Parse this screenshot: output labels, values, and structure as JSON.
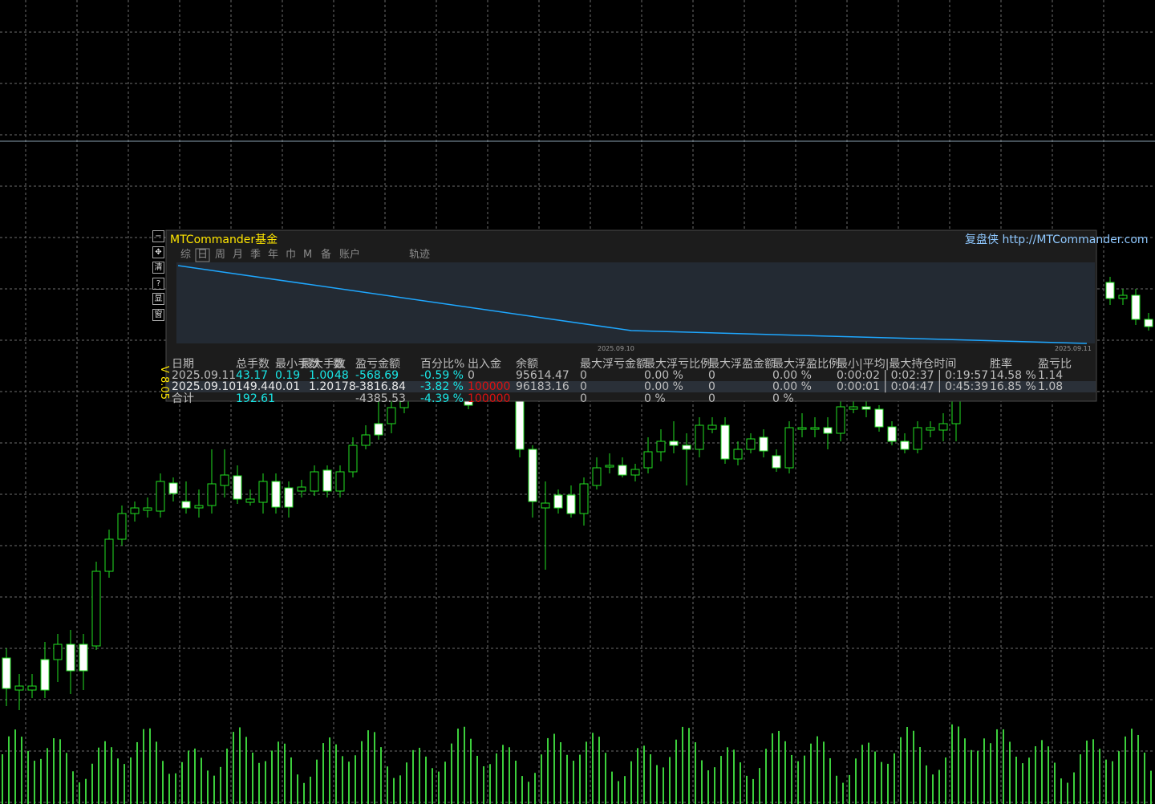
{
  "window": {
    "title": "MTCommander基金",
    "link": "复盘侠 http://MTCommander.com",
    "version": "V 8.05",
    "side_buttons": [
      "−",
      "✥",
      "清",
      "?",
      "显",
      "窗"
    ]
  },
  "tabs": [
    "综",
    "日",
    "周",
    "月",
    "季",
    "年",
    "巾",
    "M",
    "备",
    "账户",
    "轨迹"
  ],
  "equity_chart": {
    "x_labels": [
      "2025.09.10",
      "2025.09.11"
    ]
  },
  "table": {
    "headers": [
      "日期",
      "总手数",
      "最小手数",
      "最大手数",
      "数",
      "盈亏金额",
      "百分比%",
      "出入金",
      "余额",
      "最大浮亏金额",
      "最大浮亏比例",
      "最大浮盈金额",
      "最大浮盈比例",
      "最小|平均|最大持仓时间",
      "胜率",
      "盈亏比"
    ],
    "rows": [
      [
        "2025.09.11",
        "43.17",
        "0.19",
        "1.00",
        "48",
        "-568.69",
        "-0.59 %",
        "0",
        "95614.47",
        "0",
        "0.00 %",
        "0",
        "0.00 %",
        "0:00:02 | 0:02:37 | 0:19:57",
        "14.58 %",
        "1.14"
      ],
      [
        "2025.09.10",
        "149.44",
        "0.01",
        "1.20",
        "178",
        "-3816.84",
        "-3.82 %",
        "100000",
        "96183.16",
        "0",
        "0.00 %",
        "0",
        "0.00 %",
        "0:00:01 | 0:04:47 | 0:45:39",
        "16.85 %",
        "1.08"
      ],
      [
        "合计",
        "192.61",
        null,
        null,
        null,
        "-4385.53",
        "-4.39 %",
        "100000",
        null,
        "0",
        "0 %",
        "0",
        "0 %",
        null,
        null,
        null
      ]
    ]
  }
}
